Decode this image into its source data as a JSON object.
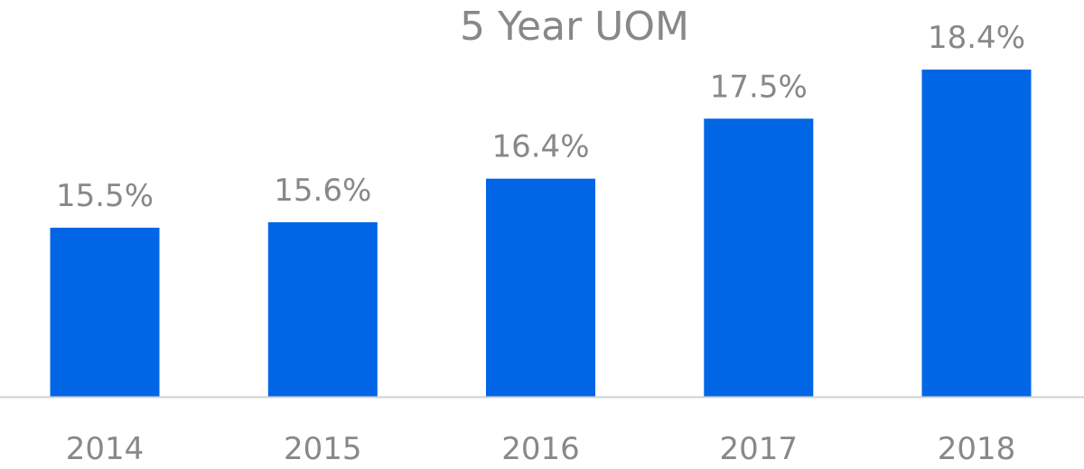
{
  "chart_data": {
    "type": "bar",
    "title": "5 Year UOM",
    "xlabel": "",
    "ylabel": "",
    "categories": [
      "2014",
      "2015",
      "2016",
      "2017",
      "2018"
    ],
    "values": [
      15.5,
      15.6,
      16.4,
      17.5,
      18.4
    ],
    "data_labels": [
      "15.5%",
      "15.6%",
      "16.4%",
      "17.5%",
      "18.4%"
    ],
    "unit": "%",
    "ylim": [
      12.4,
      18.4
    ],
    "grid": false,
    "legend": "none",
    "colors": {
      "bar": "#0066E6",
      "text": "#888888",
      "axis": "#D0D0D0"
    }
  }
}
